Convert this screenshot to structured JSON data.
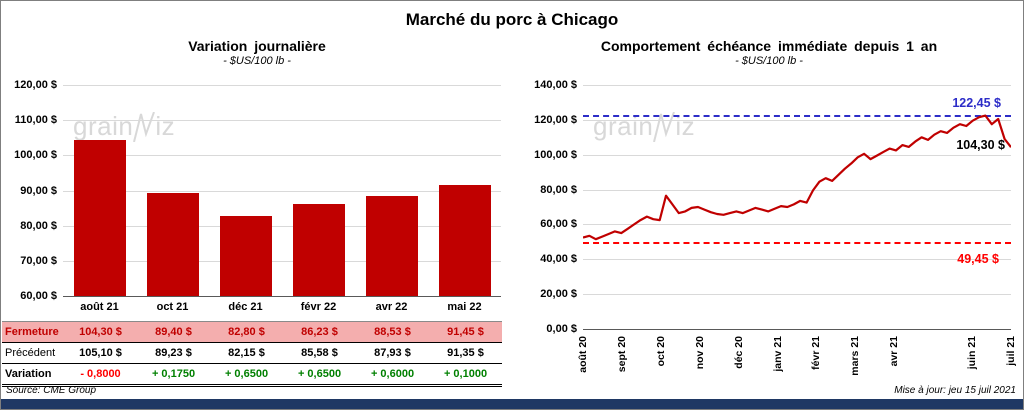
{
  "page": {
    "title": "Marché du porc à Chicago",
    "source": "Source: CME Group",
    "updated": "Mise à jour: jeu 15 juil 2021",
    "watermark_left": "grain",
    "watermark_right": "iz"
  },
  "colors": {
    "series_red": "#C00000",
    "dashed_blue": "#2D2DC8",
    "dashed_red": "#FF0000",
    "positive_green": "#008000",
    "negative_red": "#FF0000",
    "footer_bar_navy": "#1F3864",
    "fermeture_row_pink": "#F4AEAE",
    "gridline_gray": "#D9D9D9"
  },
  "chart_data": [
    {
      "type": "bar",
      "title": "Variation journalière",
      "subtitle": "- $US/100 lb -",
      "categories": [
        "août 21",
        "oct 21",
        "déc 21",
        "févr 22",
        "avr 22",
        "mai 22"
      ],
      "values": [
        104.3,
        89.4,
        82.8,
        86.23,
        88.53,
        91.45
      ],
      "ylim": [
        60,
        120
      ],
      "ytick_labels": [
        "120,00 $",
        "110,00 $",
        "100,00 $",
        "90,00 $",
        "80,00 $",
        "70,00 $",
        "60,00 $"
      ],
      "bar_color": "#C00000",
      "grid": true,
      "legend": false
    },
    {
      "type": "line",
      "title": "Comportement échéance immédiate depuis 1 an",
      "subtitle": "- $US/100 lb -",
      "x_labels": [
        "août 20",
        "sept 20",
        "oct 20",
        "nov 20",
        "déc 20",
        "janv 21",
        "févr 21",
        "mars 21",
        "avr 21",
        "juin 21",
        "juil 21"
      ],
      "x_label_month_positions": [
        0,
        1,
        2,
        3,
        4,
        5,
        6,
        7,
        8,
        10,
        11
      ],
      "x_months_span": 11,
      "values": [
        52.5,
        53.5,
        51.5,
        53.0,
        54.5,
        56.0,
        55.0,
        57.5,
        60.0,
        62.5,
        64.5,
        63.0,
        62.5,
        76.5,
        71.5,
        66.5,
        67.5,
        69.5,
        70.0,
        68.5,
        67.0,
        66.0,
        65.5,
        66.5,
        67.5,
        66.5,
        68.0,
        69.5,
        68.5,
        67.5,
        69.0,
        70.5,
        70.0,
        71.5,
        73.5,
        72.5,
        79.5,
        84.5,
        86.5,
        85.0,
        88.5,
        92.0,
        95.0,
        98.5,
        100.5,
        97.5,
        99.5,
        101.5,
        103.5,
        102.5,
        105.5,
        104.5,
        107.5,
        110.0,
        108.5,
        111.5,
        113.5,
        112.5,
        115.5,
        117.5,
        116.5,
        119.5,
        121.5,
        122.45,
        117.5,
        120.5,
        109.0,
        104.3
      ],
      "ylim": [
        0,
        140
      ],
      "ytick_labels": [
        "140,00 $",
        "120,00 $",
        "100,00 $",
        "80,00 $",
        "60,00 $",
        "40,00 $",
        "20,00 $",
        "0,00 $"
      ],
      "line_color": "#C00000",
      "reference_lines": [
        {
          "value": 122.45,
          "label": "122,45 $",
          "color": "#2D2DC8",
          "style": "dashed"
        },
        {
          "value": 49.45,
          "label": "49,45 $",
          "color": "#FF0000",
          "style": "dashed"
        }
      ],
      "last_value": 104.3,
      "last_value_label": "104,30 $",
      "grid": true,
      "legend": false
    }
  ],
  "table": {
    "rows": [
      {
        "style": "fermeture",
        "label": "Fermeture",
        "values": [
          "104,30 $",
          "89,40 $",
          "82,80 $",
          "86,23 $",
          "88,53 $",
          "91,45 $"
        ]
      },
      {
        "style": "precedent",
        "label": "Précédent",
        "values": [
          "105,10 $",
          "89,23 $",
          "82,15 $",
          "85,58 $",
          "87,93 $",
          "91,35 $"
        ]
      },
      {
        "style": "variation",
        "label": "Variation",
        "values": [
          "- 0,8000",
          "+ 0,1750",
          "+ 0,6500",
          "+ 0,6500",
          "+ 0,6000",
          "+ 0,1000"
        ],
        "value_colors": [
          "neg",
          "pos",
          "pos",
          "pos",
          "pos",
          "pos"
        ]
      }
    ]
  }
}
